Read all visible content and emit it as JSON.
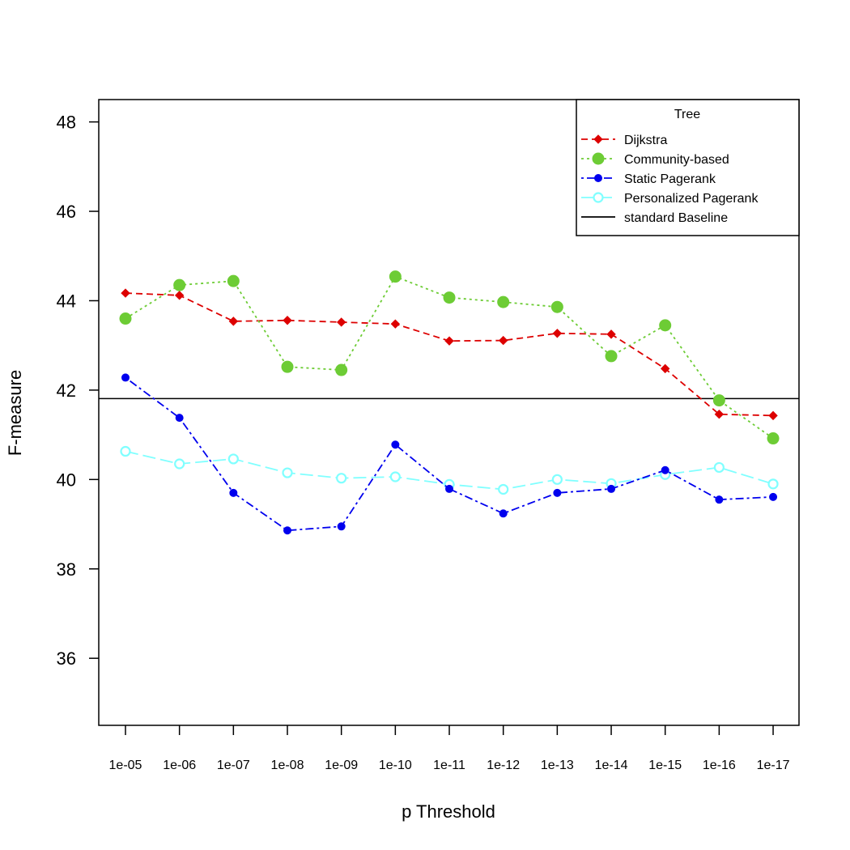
{
  "chart_data": {
    "type": "line",
    "xlabel": "p Threshold",
    "ylabel": "F-measure",
    "categories": [
      "1e-05",
      "1e-06",
      "1e-07",
      "1e-08",
      "1e-09",
      "1e-10",
      "1e-11",
      "1e-12",
      "1e-13",
      "1e-14",
      "1e-15",
      "1e-16",
      "1e-17"
    ],
    "y_ticks": [
      36,
      38,
      40,
      42,
      44,
      46,
      48
    ],
    "ylim": [
      34.5,
      48.5
    ],
    "grid": false,
    "legend": {
      "title": "Tree",
      "position": "top-right"
    },
    "series": [
      {
        "name": "Dijkstra",
        "color": "#dd0000",
        "marker": "diamond",
        "line_style": "dashed",
        "values": [
          44.17,
          44.12,
          43.54,
          43.56,
          43.52,
          43.48,
          43.1,
          43.11,
          43.27,
          43.25,
          42.48,
          41.46,
          41.43
        ]
      },
      {
        "name": "Community-based",
        "color": "#6dcc35",
        "marker": "filled-circle-large",
        "line_style": "dotted",
        "values": [
          43.6,
          44.35,
          44.44,
          42.52,
          42.45,
          44.54,
          44.07,
          43.97,
          43.86,
          42.76,
          43.45,
          41.77,
          40.92
        ]
      },
      {
        "name": "Static Pagerank",
        "color": "#0000ee",
        "marker": "filled-circle-small",
        "line_style": "dotdash",
        "values": [
          42.28,
          41.38,
          39.7,
          38.86,
          38.95,
          40.78,
          39.79,
          39.24,
          39.7,
          39.79,
          40.21,
          39.55,
          39.61
        ]
      },
      {
        "name": "Personalized Pagerank",
        "color": "#80ffff",
        "marker": "open-circle",
        "line_style": "longdash",
        "values": [
          40.63,
          40.35,
          40.46,
          40.15,
          40.03,
          40.06,
          39.89,
          39.78,
          40.0,
          39.91,
          40.11,
          40.27,
          39.9
        ]
      }
    ],
    "baseline": {
      "name": "standard Baseline",
      "value": 41.81,
      "color": "#000000"
    }
  }
}
